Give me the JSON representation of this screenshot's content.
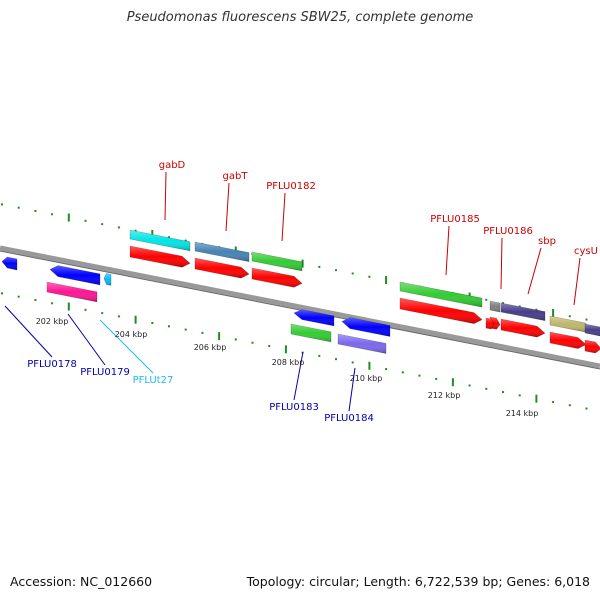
{
  "title": "Pseudomonas fluorescens SBW25, complete genome",
  "footer": {
    "accession": "Accession: NC_012660",
    "summary": "Topology: circular; Length: 6,722,539 bp; Genes: 6,018"
  },
  "scale_labels": [
    "202 kbp",
    "204 kbp",
    "206 kbp",
    "208 kbp",
    "210 kbp",
    "212 kbp",
    "214 kbp"
  ],
  "features": [
    {
      "id": "gabD",
      "label": "gabD",
      "strand": "+",
      "color": "#00e5e5",
      "label_color": "#cc0000"
    },
    {
      "id": "gabT",
      "label": "gabT",
      "strand": "+",
      "color": "#4682b4",
      "label_color": "#cc0000"
    },
    {
      "id": "PFLU0182",
      "label": "PFLU0182",
      "strand": "+",
      "color": "#33cc33",
      "label_color": "#cc0000"
    },
    {
      "id": "PFLU0185",
      "label": "PFLU0185",
      "strand": "+",
      "color": "#33cc33",
      "label_color": "#cc0000"
    },
    {
      "id": "PFLU0186",
      "label": "PFLU0186",
      "strand": "+",
      "color": "#808080",
      "label_color": "#cc0000"
    },
    {
      "id": "sbp",
      "label": "sbp",
      "strand": "+",
      "color": "#483d8b",
      "label_color": "#cc0000"
    },
    {
      "id": "cysU",
      "label": "cysU",
      "strand": "+",
      "color": "#bdb76b",
      "label_color": "#cc0000"
    },
    {
      "id": "PFLU0178",
      "label": "PFLU0178",
      "strand": "-",
      "color": "#0000ff",
      "label_color": "#0000aa"
    },
    {
      "id": "PFLU0179",
      "label": "PFLU0179",
      "strand": "-",
      "color": "#ff1493",
      "label_color": "#0000aa"
    },
    {
      "id": "PFLUt27",
      "label": "PFLUt27",
      "strand": "-",
      "color": "#00bfff",
      "label_color": "#22bbee"
    },
    {
      "id": "PFLU0183",
      "label": "PFLU0183",
      "strand": "-",
      "color": "#33cc33",
      "label_color": "#0000aa"
    },
    {
      "id": "PFLU0184",
      "label": "PFLU0184",
      "strand": "-",
      "color": "#7b68ee",
      "label_color": "#0000aa"
    }
  ],
  "colors": {
    "backbone": "#999999",
    "forward_cds": "#ff0000",
    "reverse_cds": "#0000ff",
    "tick": "#228b22"
  }
}
